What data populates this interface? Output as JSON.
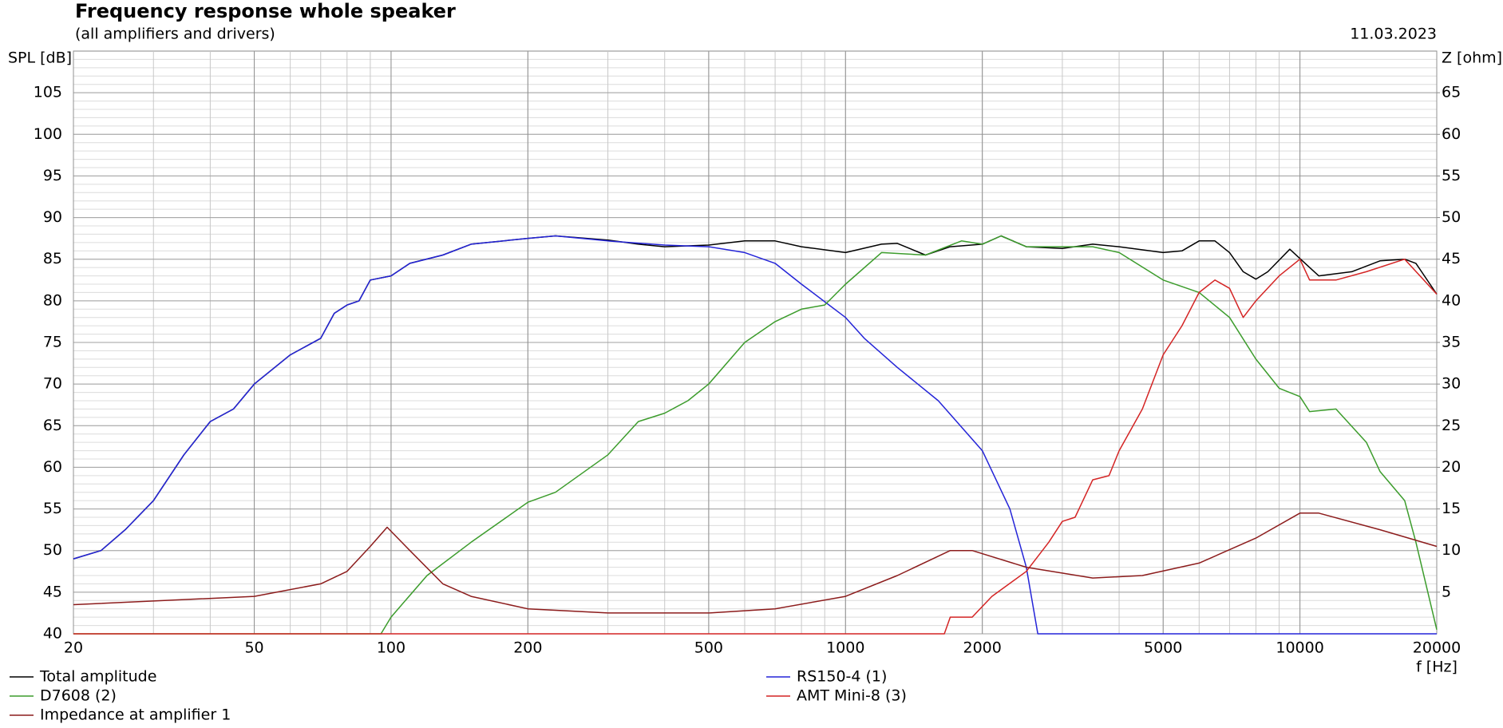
{
  "chart_data": {
    "type": "line",
    "title": "Frequency response whole speaker",
    "subtitle": "(all amplifiers and drivers)",
    "date": "11.03.2023",
    "y_label": "SPL [dB]",
    "y2_label": "Z [ohm]",
    "x_label": "f [Hz]",
    "log_x": true,
    "grid": true,
    "xlim": [
      20,
      20000
    ],
    "xticks": [
      20,
      50,
      100,
      200,
      500,
      1000,
      2000,
      5000,
      10000,
      20000
    ],
    "ylim": [
      40,
      110
    ],
    "yticks": [
      40,
      45,
      50,
      55,
      60,
      65,
      70,
      75,
      80,
      85,
      90,
      95,
      100,
      105
    ],
    "y2lim": [
      0,
      70
    ],
    "y2ticks": [
      5,
      10,
      15,
      20,
      25,
      30,
      35,
      40,
      45,
      50,
      55,
      60,
      65
    ],
    "series": [
      {
        "name": "Total amplitude",
        "color": "#000000",
        "x": [
          20,
          23,
          26,
          30,
          35,
          40,
          45,
          50,
          60,
          70,
          75,
          80,
          85,
          90,
          100,
          110,
          130,
          150,
          200,
          230,
          300,
          350,
          400,
          500,
          600,
          700,
          800,
          1000,
          1200,
          1300,
          1500,
          1700,
          2000,
          2200,
          2500,
          3000,
          3500,
          4000,
          5000,
          5500,
          6000,
          6500,
          7000,
          7500,
          8000,
          8500,
          9500,
          10500,
          11000,
          13000,
          15000,
          17000,
          18000,
          20000
        ],
        "values": [
          49,
          50,
          52.5,
          56,
          61.5,
          65.5,
          67,
          70,
          73.5,
          75.5,
          78.5,
          79.5,
          80,
          82.5,
          83,
          84.5,
          85.5,
          86.8,
          87.5,
          87.8,
          87.3,
          86.8,
          86.5,
          86.7,
          87.2,
          87.2,
          86.5,
          85.8,
          86.8,
          86.9,
          85.5,
          86.5,
          86.8,
          87.8,
          86.5,
          86.3,
          86.8,
          86.5,
          85.8,
          86,
          87.2,
          87.2,
          85.8,
          83.5,
          82.6,
          83.5,
          86.2,
          84,
          83,
          83.5,
          84.8,
          85,
          84.5,
          80.8
        ]
      },
      {
        "name": "RS150-4 (1)",
        "color": "#2424d8",
        "x": [
          20,
          23,
          26,
          30,
          35,
          40,
          45,
          50,
          60,
          70,
          75,
          80,
          85,
          90,
          100,
          110,
          130,
          150,
          200,
          230,
          300,
          400,
          500,
          600,
          700,
          800,
          1000,
          1100,
          1300,
          1600,
          2000,
          2300,
          2500,
          2650,
          5000,
          20000
        ],
        "values": [
          49,
          50,
          52.5,
          56,
          61.5,
          65.5,
          67,
          70,
          73.5,
          75.5,
          78.5,
          79.5,
          80,
          82.5,
          83,
          84.5,
          85.5,
          86.8,
          87.5,
          87.8,
          87.2,
          86.7,
          86.5,
          85.8,
          84.5,
          82,
          78,
          75.5,
          72,
          68,
          62,
          55,
          48,
          40,
          40,
          40
        ]
      },
      {
        "name": "D7608 (2)",
        "color": "#3c9c2c",
        "x": [
          20,
          95,
          100,
          120,
          150,
          200,
          230,
          300,
          350,
          400,
          450,
          500,
          600,
          700,
          800,
          900,
          1000,
          1200,
          1500,
          1800,
          2000,
          2200,
          2500,
          3500,
          4000,
          5000,
          6000,
          7000,
          8000,
          9000,
          10000,
          10500,
          12000,
          14000,
          15000,
          17000,
          18000,
          20000
        ],
        "values": [
          40,
          40,
          42,
          47,
          51,
          55.8,
          57,
          61.5,
          65.5,
          66.5,
          68,
          70,
          75,
          77.5,
          79,
          79.5,
          82,
          85.8,
          85.5,
          87.2,
          86.8,
          87.8,
          86.5,
          86.5,
          85.8,
          82.5,
          81,
          78,
          73,
          69.5,
          68.5,
          66.7,
          67,
          63,
          59.5,
          56,
          51,
          40.5
        ]
      },
      {
        "name": "AMT Mini-8 (3)",
        "color": "#d42424",
        "x": [
          20,
          1650,
          1700,
          1900,
          2100,
          2500,
          2800,
          3000,
          3200,
          3500,
          3800,
          4000,
          4500,
          5000,
          5500,
          6000,
          6500,
          7000,
          7500,
          8000,
          9000,
          10000,
          10500,
          12000,
          14000,
          17000,
          20000
        ],
        "values": [
          40,
          40,
          42,
          42,
          44.5,
          47.5,
          51,
          53.5,
          54,
          58.5,
          59,
          62,
          67,
          73.5,
          77,
          81,
          82.5,
          81.5,
          78,
          80,
          83,
          85,
          82.5,
          82.5,
          83.5,
          85,
          80.8
        ]
      },
      {
        "name": "Impedance at amplifier 1",
        "color": "#8c1c1c",
        "axis": "y2",
        "x": [
          20,
          50,
          70,
          80,
          90,
          98,
          110,
          130,
          150,
          200,
          300,
          500,
          700,
          1000,
          1300,
          1700,
          1900,
          2500,
          3500,
          4500,
          6000,
          8000,
          10000,
          11000,
          15000,
          20000
        ],
        "values": [
          3.5,
          4.5,
          6,
          7.5,
          10.5,
          12.8,
          10,
          6,
          4.5,
          3,
          2.5,
          2.5,
          3,
          4.5,
          7,
          10,
          10,
          8,
          6.7,
          7,
          8.5,
          11.5,
          14.5,
          14.5,
          12.5,
          10.5
        ]
      }
    ]
  }
}
